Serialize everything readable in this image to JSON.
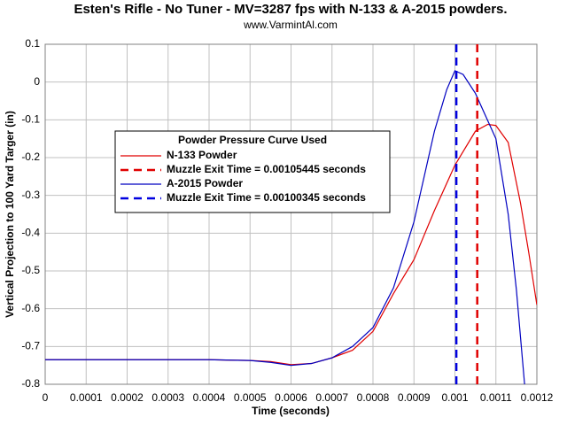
{
  "chart_data": {
    "type": "line",
    "title": "Esten's Rifle - No Tuner - MV=3287 fps with N-133 & A-2015 powders.",
    "subtitle": "www.VarmintAl.com",
    "xlabel": "Time (seconds)",
    "ylabel": "Vertical Projection to 100 Yard Targer (in)",
    "legend_title": "Powder Pressure Curve Used",
    "xlim": [
      0,
      0.0012
    ],
    "ylim": [
      -0.8,
      0.1
    ],
    "xticks": [
      0,
      0.0001,
      0.0002,
      0.0003,
      0.0004,
      0.0005,
      0.0006,
      0.0007,
      0.0008,
      0.0009,
      0.001,
      0.0011,
      0.0012
    ],
    "yticks": [
      0.1,
      0,
      -0.1,
      -0.2,
      -0.3,
      -0.4,
      -0.5,
      -0.6,
      -0.7,
      -0.8
    ],
    "grid": true,
    "series": [
      {
        "name": "N-133 Powder",
        "color": "#e00000",
        "x": [
          0,
          0.0001,
          0.0002,
          0.0003,
          0.0004,
          0.0005,
          0.00055,
          0.0006,
          0.00065,
          0.0007,
          0.00075,
          0.0008,
          0.00085,
          0.0009,
          0.00095,
          0.001,
          0.00105,
          0.00108,
          0.0011,
          0.00113,
          0.00116,
          0.00118,
          0.0012
        ],
        "values": [
          -0.735,
          -0.735,
          -0.735,
          -0.735,
          -0.735,
          -0.737,
          -0.74,
          -0.748,
          -0.745,
          -0.73,
          -0.71,
          -0.66,
          -0.56,
          -0.47,
          -0.34,
          -0.22,
          -0.13,
          -0.112,
          -0.115,
          -0.16,
          -0.32,
          -0.45,
          -0.59
        ]
      },
      {
        "name": "A-2015 Powder",
        "color": "#0000c0",
        "x": [
          0,
          0.0001,
          0.0002,
          0.0003,
          0.0004,
          0.0005,
          0.00055,
          0.0006,
          0.00065,
          0.0007,
          0.00075,
          0.0008,
          0.00085,
          0.0009,
          0.00095,
          0.00098,
          0.001,
          0.00102,
          0.00105,
          0.0011,
          0.00113,
          0.00115,
          0.00117
        ],
        "values": [
          -0.735,
          -0.735,
          -0.735,
          -0.735,
          -0.735,
          -0.737,
          -0.742,
          -0.75,
          -0.745,
          -0.73,
          -0.7,
          -0.65,
          -0.545,
          -0.37,
          -0.13,
          -0.02,
          0.03,
          0.02,
          -0.03,
          -0.15,
          -0.35,
          -0.55,
          -0.8
        ]
      }
    ],
    "vlines": [
      {
        "name": "Muzzle Exit Time = 0.00105445 seconds",
        "color": "#e00000",
        "x": 0.00105445
      },
      {
        "name": "Muzzle Exit Time = 0.00100345 seconds",
        "color": "#0000e0",
        "x": 0.00100345
      }
    ]
  }
}
